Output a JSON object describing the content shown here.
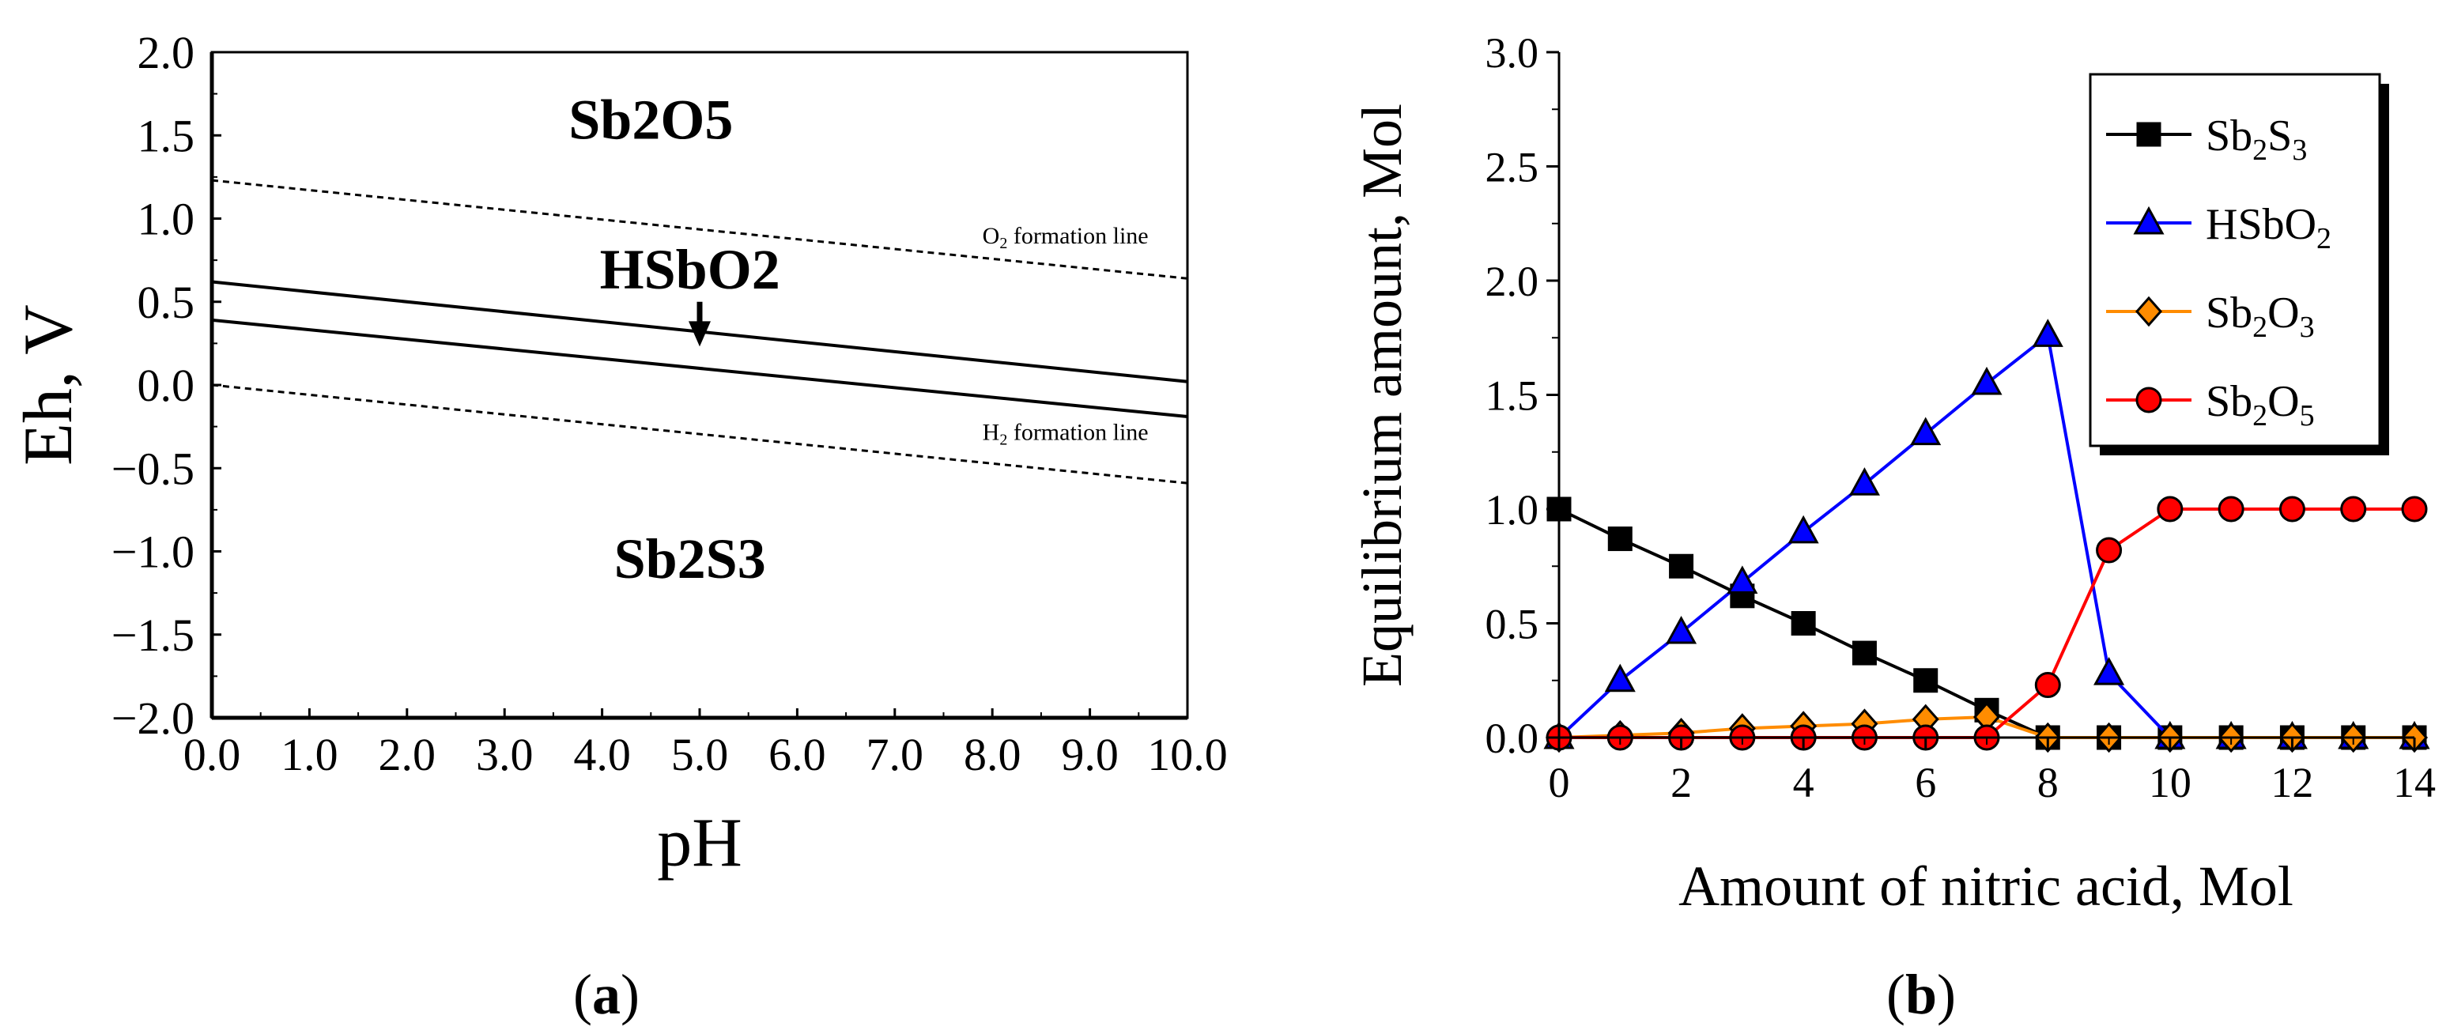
{
  "chart_data": [
    {
      "type": "line",
      "panel_label": "a",
      "xlabel": "pH",
      "ylabel": "Eh, V",
      "xlim": [
        0,
        10
      ],
      "ylim": [
        -2,
        2
      ],
      "x_ticks": [
        0,
        1,
        2,
        3,
        4,
        5,
        6,
        7,
        8,
        9,
        10
      ],
      "x_tick_labels": [
        "0.0",
        "1.0",
        "2.0",
        "3.0",
        "4.0",
        "5.0",
        "6.0",
        "7.0",
        "8.0",
        "9.0",
        "10.0"
      ],
      "y_ticks": [
        2,
        1.5,
        1,
        0.5,
        0,
        -0.5,
        -1,
        -1.5,
        -2
      ],
      "y_tick_labels": [
        "2.0",
        "1.5",
        "1.0",
        "0.5",
        "0.0",
        "−0.5",
        "−1.0",
        "−1.5",
        "−2.0"
      ],
      "lines": [
        {
          "name": "Sb2O5/HSbO2 boundary",
          "style": "solid",
          "x": [
            0,
            10
          ],
          "y": [
            0.62,
            0.02
          ]
        },
        {
          "name": "HSbO2/Sb2S3 boundary",
          "style": "solid",
          "x": [
            0,
            10
          ],
          "y": [
            0.39,
            -0.19
          ]
        },
        {
          "name": "O2 formation line",
          "style": "dashed",
          "x": [
            0,
            10
          ],
          "y": [
            1.23,
            0.64
          ]
        },
        {
          "name": "H2 formation line",
          "style": "dashed",
          "x": [
            0,
            10
          ],
          "y": [
            0.0,
            -0.59
          ]
        }
      ],
      "line_labels": [
        {
          "prefix": "O",
          "sub": "2",
          "suffix": " formation line",
          "x": 9.6,
          "y": 0.85
        },
        {
          "prefix": "H",
          "sub": "2",
          "suffix": " formation line",
          "x": 9.6,
          "y": -0.33
        }
      ],
      "regions": [
        {
          "main": "Sb",
          "s1": "2",
          "mid": "O",
          "s2": "5",
          "x": 4.5,
          "y": 1.48
        },
        {
          "main": "HSbO",
          "s1": "2",
          "mid": "",
          "s2": "",
          "x": 4.9,
          "y": 0.58
        },
        {
          "main": "Sb",
          "s1": "2",
          "mid": "S",
          "s2": "3",
          "x": 4.9,
          "y": -1.16
        }
      ],
      "arrow": {
        "x": 5.0,
        "y_start": 0.5,
        "y_end": 0.25
      }
    },
    {
      "type": "line",
      "panel_label": "b",
      "xlabel": "Amount of nitric acid, Mol",
      "ylabel": "Equilibrium amount, Mol",
      "xlim": [
        0,
        14
      ],
      "ylim": [
        0,
        3
      ],
      "x_ticks": [
        0,
        2,
        4,
        6,
        8,
        10,
        12,
        14
      ],
      "x_tick_labels": [
        "0",
        "2",
        "4",
        "6",
        "8",
        "10",
        "12",
        "14"
      ],
      "y_ticks": [
        0,
        0.5,
        1,
        1.5,
        2,
        2.5,
        3
      ],
      "y_tick_labels": [
        "0.0",
        "0.5",
        "1.0",
        "1.5",
        "2.0",
        "2.5",
        "3.0"
      ],
      "legend_position": "top-right",
      "x": [
        0,
        1,
        2,
        3,
        4,
        5,
        6,
        7,
        8,
        9,
        10,
        11,
        12,
        13,
        14
      ],
      "series": [
        {
          "base": "Sb",
          "s1": "2",
          "mid": "S",
          "s2": "3",
          "color": "#000000",
          "marker": "square",
          "values": [
            1.0,
            0.87,
            0.75,
            0.62,
            0.5,
            0.37,
            0.25,
            0.12,
            0.0,
            0.0,
            0.0,
            0.0,
            0.0,
            0.0,
            0.0
          ]
        },
        {
          "base": "HSbO",
          "s1": "2",
          "mid": "",
          "s2": "",
          "color": "#0000ff",
          "marker": "triangle",
          "values": [
            0.0,
            0.25,
            0.46,
            0.68,
            0.9,
            1.11,
            1.33,
            1.55,
            1.76,
            0.28,
            0.0,
            0.0,
            0.0,
            0.0,
            0.0
          ]
        },
        {
          "base": "Sb",
          "s1": "2",
          "mid": "O",
          "s2": "3",
          "color": "#ff8c00",
          "marker": "diamond",
          "values": [
            0.0,
            0.01,
            0.02,
            0.04,
            0.05,
            0.06,
            0.08,
            0.09,
            0.0,
            0.0,
            0.0,
            0.0,
            0.0,
            0.0,
            0.0
          ]
        },
        {
          "base": "Sb",
          "s1": "2",
          "mid": "O",
          "s2": "5",
          "color": "#ff0000",
          "marker": "circle",
          "values": [
            0.0,
            0.0,
            0.0,
            0.0,
            0.0,
            0.0,
            0.0,
            0.0,
            0.23,
            0.82,
            1.0,
            1.0,
            1.0,
            1.0,
            1.0
          ]
        }
      ]
    }
  ]
}
